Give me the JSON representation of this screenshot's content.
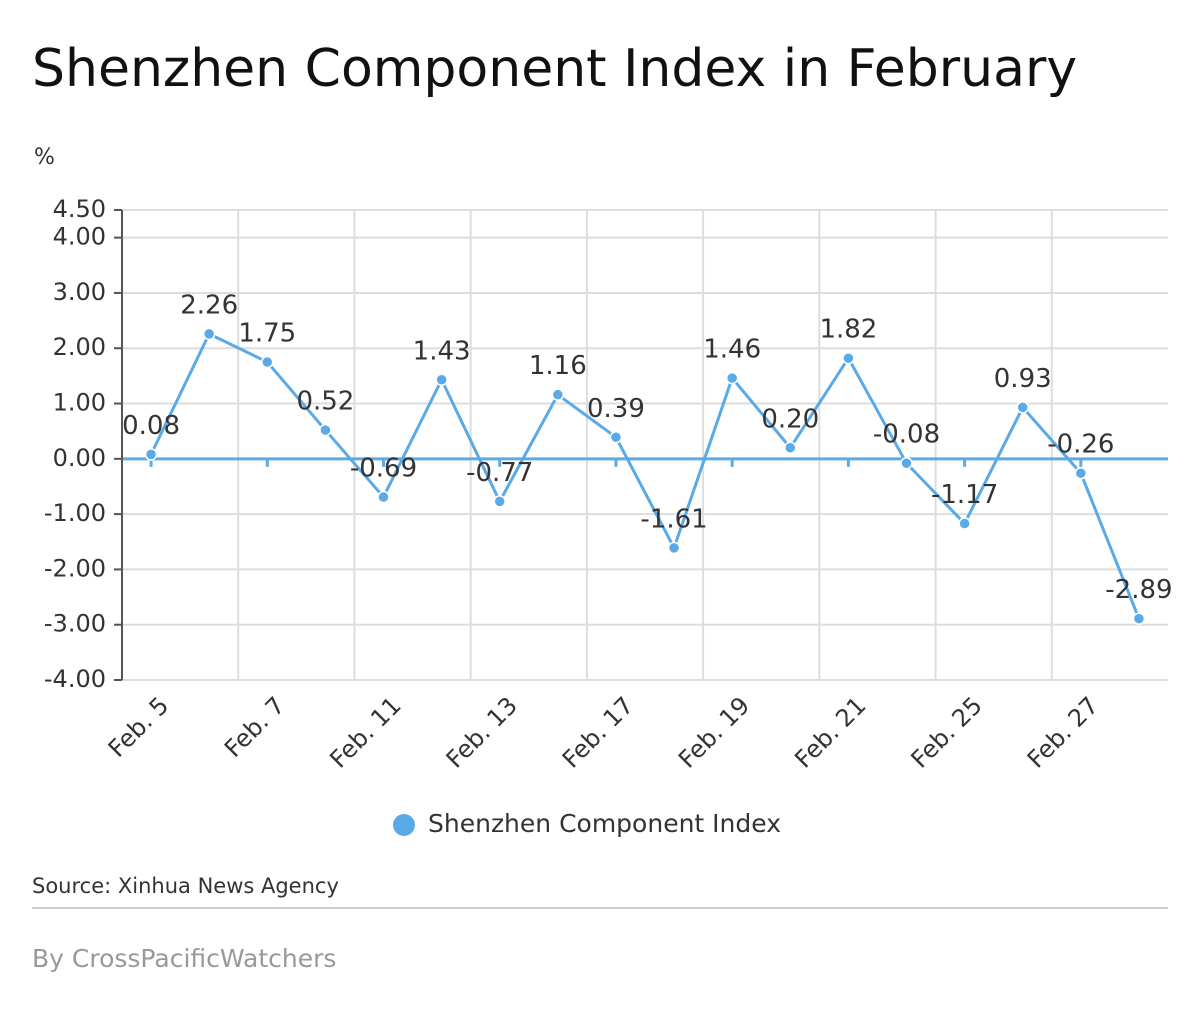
{
  "chart_data": {
    "type": "line",
    "title": "Shenzhen Component Index in February",
    "y_label": "%",
    "categories": [
      "Feb. 5",
      null,
      "Feb. 7",
      null,
      "Feb. 11",
      null,
      "Feb. 13",
      null,
      "Feb. 17",
      null,
      "Feb. 19",
      null,
      "Feb. 21",
      null,
      "Feb. 25",
      null,
      "Feb. 27",
      null
    ],
    "series": [
      {
        "name": "Shenzhen Component Index",
        "color": "#5aaae8",
        "values": [
          0.08,
          2.26,
          1.75,
          0.52,
          -0.69,
          1.43,
          -0.77,
          1.16,
          0.39,
          -1.61,
          1.46,
          0.2,
          1.82,
          -0.08,
          -1.17,
          0.93,
          -0.26,
          -2.89
        ],
        "value_labels": [
          "0.08",
          "2.26",
          "1.75",
          "0.52",
          "-0.69",
          "1.43",
          "-0.77",
          "1.16",
          "0.39",
          "-1.61",
          "1.46",
          "0.20",
          "1.82",
          "-0.08",
          "-1.17",
          "0.93",
          "-0.26",
          "-2.89"
        ]
      }
    ],
    "ylim": [
      -4,
      4.5
    ],
    "yticks": [
      {
        "value": -4,
        "label": "-4.00"
      },
      {
        "value": -3,
        "label": "-3.00"
      },
      {
        "value": -2,
        "label": "-2.00"
      },
      {
        "value": -1,
        "label": "-1.00"
      },
      {
        "value": 0,
        "label": "0.00"
      },
      {
        "value": 1,
        "label": "1.00"
      },
      {
        "value": 2,
        "label": "2.00"
      },
      {
        "value": 3,
        "label": "3.00"
      },
      {
        "value": 4,
        "label": "4.00"
      },
      {
        "value": 4.5,
        "label": "4.50"
      }
    ],
    "grid": true,
    "legend": "bottom",
    "source": "Source: Xinhua News Agency",
    "credit": "By CrossPacificWatchers"
  }
}
